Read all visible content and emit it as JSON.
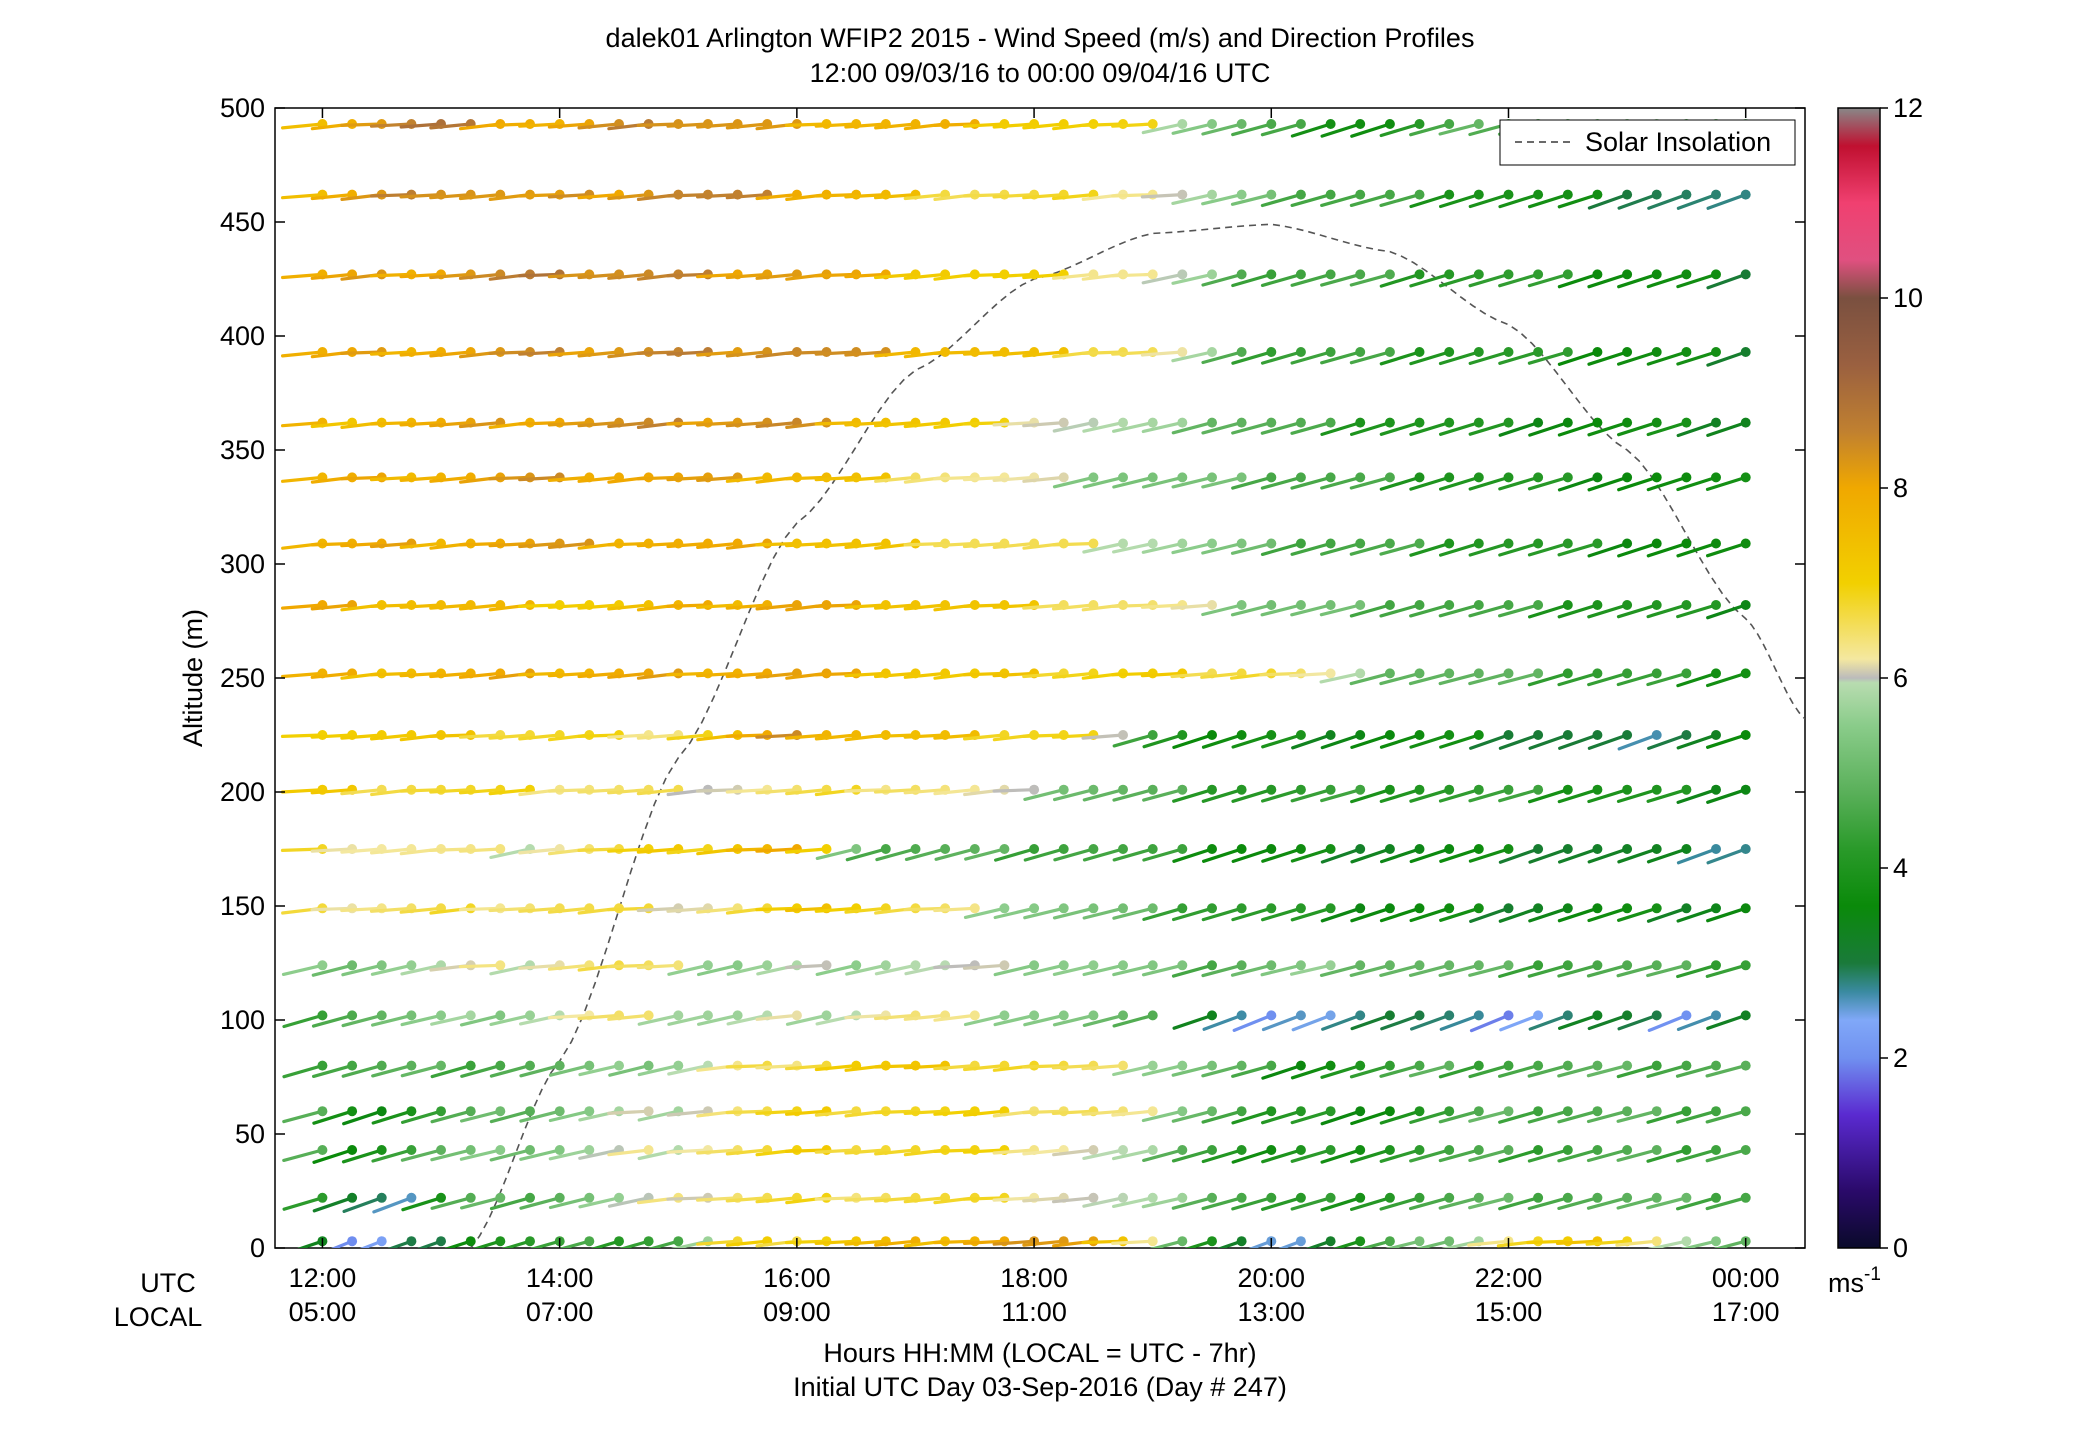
{
  "chart_data": {
    "type": "wind-profile",
    "title": "dalek01 Arlington WFIP2 2015 - Wind Speed (m/s) and Direction Profiles",
    "subtitle": "12:00 09/03/16 to 00:00 09/04/16  UTC",
    "ylabel": "Altitude (m)",
    "xlabel": "Hours HH:MM  (LOCAL = UTC - 7hr)",
    "xlabel2": "Initial UTC Day 03-Sep-2016 (Day # 247)",
    "ylim": [
      0,
      500
    ],
    "yticks": [
      "0",
      "50",
      "100",
      "150",
      "200",
      "250",
      "300",
      "350",
      "400",
      "450",
      "500"
    ],
    "xlim_hours": [
      11.6,
      24.5
    ],
    "utc_row_label": "UTC",
    "local_row_label": "LOCAL",
    "xticks_utc": [
      "12:00",
      "14:00",
      "16:00",
      "18:00",
      "20:00",
      "22:00",
      "00:00"
    ],
    "xticks_local": [
      "05:00",
      "07:00",
      "09:00",
      "11:00",
      "13:00",
      "15:00",
      "17:00"
    ],
    "xtick_hours": [
      12,
      14,
      16,
      18,
      20,
      22,
      24
    ],
    "legend": {
      "label": "Solar Insolation",
      "position": "top-right"
    },
    "colorbar": {
      "range": [
        0,
        12
      ],
      "ticks": [
        "0",
        "2",
        "4",
        "6",
        "8",
        "10",
        "12"
      ],
      "unit_label": "ms",
      "unit_exp": "-1"
    },
    "altitudes": [
      3,
      22,
      43,
      60,
      80,
      102,
      124,
      149,
      175,
      201,
      225,
      252,
      282,
      309,
      338,
      362,
      393,
      427,
      462,
      493
    ],
    "sample_start_hour": 12,
    "sample_step_hours": 0.25,
    "sample_count": 49,
    "speed_profile": [
      {
        "alt": 3,
        "segments": [
          [
            12,
            3.5
          ],
          [
            12.3,
            1.7
          ],
          [
            13.3,
            4.0
          ],
          [
            15.0,
            4.6
          ],
          [
            15.5,
            6.6
          ],
          [
            17.0,
            7.6
          ],
          [
            18.0,
            8.3
          ],
          [
            18.8,
            7.6
          ],
          [
            19.4,
            4.2
          ],
          [
            20.0,
            2.2
          ],
          [
            21.0,
            4.5
          ],
          [
            22.2,
            6.8
          ],
          [
            23.0,
            7.2
          ],
          [
            24,
            4.7
          ]
        ]
      },
      {
        "alt": 22,
        "segments": [
          [
            12,
            4.0
          ],
          [
            12.8,
            2.6
          ],
          [
            13.1,
            4.5
          ],
          [
            14.0,
            5.0
          ],
          [
            15.5,
            6.6
          ],
          [
            17.0,
            6.8
          ],
          [
            18.0,
            6.5
          ],
          [
            19.0,
            5.7
          ],
          [
            20.3,
            4.0
          ],
          [
            22.0,
            4.8
          ],
          [
            24,
            4.7
          ]
        ]
      },
      {
        "alt": 43,
        "segments": [
          [
            12,
            4.5
          ],
          [
            12.3,
            3.8
          ],
          [
            13.0,
            4.8
          ],
          [
            15.5,
            6.6
          ],
          [
            16.5,
            7.0
          ],
          [
            18.0,
            6.6
          ],
          [
            19.0,
            5.6
          ],
          [
            20.0,
            3.7
          ],
          [
            21.5,
            4.4
          ],
          [
            24,
            4.7
          ]
        ]
      },
      {
        "alt": 60,
        "segments": [
          [
            12,
            4.5
          ],
          [
            12.5,
            3.7
          ],
          [
            13.5,
            4.8
          ],
          [
            15.5,
            6.5
          ],
          [
            16.5,
            7.0
          ],
          [
            18.5,
            6.6
          ],
          [
            19.3,
            5.7
          ],
          [
            20.0,
            4.0
          ],
          [
            21.0,
            3.8
          ],
          [
            22.0,
            4.7
          ],
          [
            24,
            4.7
          ]
        ]
      },
      {
        "alt": 80,
        "segments": [
          [
            12,
            4.6
          ],
          [
            14.0,
            4.8
          ],
          [
            15.5,
            6.2
          ],
          [
            16.5,
            7.2
          ],
          [
            18.0,
            6.9
          ],
          [
            19.3,
            5.6
          ],
          [
            20.3,
            3.8
          ],
          [
            21.5,
            4.6
          ],
          [
            24,
            4.7
          ]
        ]
      },
      {
        "alt": 102,
        "segments": [
          [
            12,
            4.7
          ],
          [
            14.5,
            6.3
          ],
          [
            15.5,
            5.7
          ],
          [
            17.0,
            6.4
          ],
          [
            18.5,
            5.3
          ],
          [
            19.5,
            3.5
          ],
          [
            20.0,
            1.9
          ],
          [
            20.5,
            2.8
          ],
          [
            21.0,
            3.2
          ],
          [
            22.0,
            2.2
          ],
          [
            22.8,
            3.3
          ],
          [
            23.5,
            2.3
          ],
          [
            24,
            3.3
          ]
        ]
      },
      {
        "alt": 124,
        "segments": [
          [
            12,
            5.3
          ],
          [
            14.5,
            6.6
          ],
          [
            15.5,
            5.6
          ],
          [
            17.0,
            6.0
          ],
          [
            18.5,
            5.6
          ],
          [
            19.5,
            4.8
          ],
          [
            20.5,
            5.4
          ],
          [
            22.0,
            4.7
          ],
          [
            24,
            4.5
          ]
        ]
      },
      {
        "alt": 149,
        "segments": [
          [
            12,
            6.4
          ],
          [
            14.0,
            6.7
          ],
          [
            15.3,
            6.3
          ],
          [
            16.5,
            7.3
          ],
          [
            17.5,
            6.1
          ],
          [
            19.0,
            4.8
          ],
          [
            20.5,
            3.8
          ],
          [
            22.0,
            3.5
          ],
          [
            24,
            3.6
          ]
        ]
      },
      {
        "alt": 175,
        "segments": [
          [
            12,
            6.6
          ],
          [
            13.5,
            6.1
          ],
          [
            15.0,
            6.9
          ],
          [
            16.0,
            7.9
          ],
          [
            16.7,
            4.8
          ],
          [
            18.5,
            4.6
          ],
          [
            20.0,
            3.6
          ],
          [
            22.0,
            3.5
          ],
          [
            24,
            2.9
          ]
        ]
      },
      {
        "alt": 201,
        "segments": [
          [
            12,
            7.0
          ],
          [
            14.5,
            6.5
          ],
          [
            15.5,
            6.3
          ],
          [
            17.0,
            6.7
          ],
          [
            18.5,
            5.2
          ],
          [
            19.0,
            4.7
          ],
          [
            20.0,
            4.2
          ],
          [
            22.0,
            4.2
          ],
          [
            24,
            3.7
          ]
        ]
      },
      {
        "alt": 225,
        "segments": [
          [
            12,
            7.3
          ],
          [
            15.0,
            6.6
          ],
          [
            16.0,
            8.2
          ],
          [
            17.0,
            7.4
          ],
          [
            18.5,
            6.8
          ],
          [
            19.0,
            4.8
          ],
          [
            19.5,
            3.7
          ],
          [
            21.5,
            3.6
          ],
          [
            23.0,
            2.8
          ],
          [
            24,
            3.6
          ]
        ]
      },
      {
        "alt": 252,
        "segments": [
          [
            12,
            7.6
          ],
          [
            16.0,
            8.1
          ],
          [
            17.5,
            7.1
          ],
          [
            20.0,
            6.9
          ],
          [
            21.0,
            5.2
          ],
          [
            22.0,
            4.7
          ],
          [
            24,
            4.0
          ]
        ]
      },
      {
        "alt": 282,
        "segments": [
          [
            12,
            7.9
          ],
          [
            14.5,
            7.2
          ],
          [
            16.0,
            8.1
          ],
          [
            17.5,
            7.3
          ],
          [
            19.0,
            6.4
          ],
          [
            20.0,
            5.3
          ],
          [
            22.0,
            4.4
          ],
          [
            24,
            3.7
          ]
        ]
      },
      {
        "alt": 309,
        "segments": [
          [
            12,
            7.8
          ],
          [
            14.0,
            8.1
          ],
          [
            16.0,
            7.7
          ],
          [
            17.5,
            6.8
          ],
          [
            19.0,
            6.1
          ],
          [
            20.0,
            4.8
          ],
          [
            22.0,
            4.2
          ],
          [
            24,
            3.5
          ]
        ]
      },
      {
        "alt": 338,
        "segments": [
          [
            12,
            7.7
          ],
          [
            14.0,
            8.2
          ],
          [
            16.0,
            7.8
          ],
          [
            17.5,
            6.4
          ],
          [
            19.0,
            5.3
          ],
          [
            20.5,
            4.6
          ],
          [
            22.0,
            4.0
          ],
          [
            24,
            3.5
          ]
        ]
      },
      {
        "alt": 362,
        "segments": [
          [
            12,
            7.5
          ],
          [
            14.0,
            8.2
          ],
          [
            16.0,
            8.4
          ],
          [
            17.5,
            6.9
          ],
          [
            19.0,
            5.6
          ],
          [
            20.5,
            4.4
          ],
          [
            22.0,
            3.8
          ],
          [
            24,
            3.5
          ]
        ]
      },
      {
        "alt": 393,
        "segments": [
          [
            12,
            7.8
          ],
          [
            14.0,
            8.3
          ],
          [
            16.0,
            8.6
          ],
          [
            17.5,
            7.6
          ],
          [
            19.0,
            6.6
          ],
          [
            20.0,
            4.5
          ],
          [
            22.0,
            4.1
          ],
          [
            24,
            3.5
          ]
        ]
      },
      {
        "alt": 427,
        "segments": [
          [
            12,
            7.8
          ],
          [
            14.0,
            8.6
          ],
          [
            16.0,
            8.3
          ],
          [
            17.5,
            7.1
          ],
          [
            19.0,
            6.3
          ],
          [
            20.0,
            4.6
          ],
          [
            22.0,
            4.2
          ],
          [
            24,
            3.4
          ]
        ]
      },
      {
        "alt": 462,
        "segments": [
          [
            12,
            7.6
          ],
          [
            13.0,
            8.7
          ],
          [
            14.0,
            8.0
          ],
          [
            15.0,
            8.6
          ],
          [
            16.0,
            8.2
          ],
          [
            17.5,
            6.8
          ],
          [
            19.0,
            6.5
          ],
          [
            20.0,
            4.9
          ],
          [
            22.0,
            4.0
          ],
          [
            24,
            2.6
          ]
        ]
      },
      {
        "alt": 493,
        "segments": [
          [
            12,
            7.8
          ],
          [
            13.0,
            8.8
          ],
          [
            14.0,
            7.8
          ],
          [
            15.0,
            8.6
          ],
          [
            16.0,
            8.0
          ],
          [
            17.5,
            7.6
          ],
          [
            19.0,
            6.6
          ],
          [
            20.0,
            4.5
          ],
          [
            21.0,
            3.8
          ],
          [
            22.0,
            5.0
          ],
          [
            24,
            5.2
          ]
        ]
      }
    ],
    "gap_samples": [
      {
        "alt": 102,
        "from": 19.25,
        "to": 19.4
      }
    ],
    "direction_note": "southwesterly to westerly winds; stick tilt encodes direction",
    "solar_insolation_curve": {
      "hours": [
        13.25,
        14.0,
        15.0,
        16.0,
        17.0,
        18.0,
        19.0,
        20.0,
        21.0,
        22.0,
        23.0,
        24.0,
        24.5
      ],
      "values": [
        0,
        82,
        215,
        318,
        385,
        425,
        445,
        449,
        437,
        405,
        350,
        276,
        232
      ]
    }
  }
}
